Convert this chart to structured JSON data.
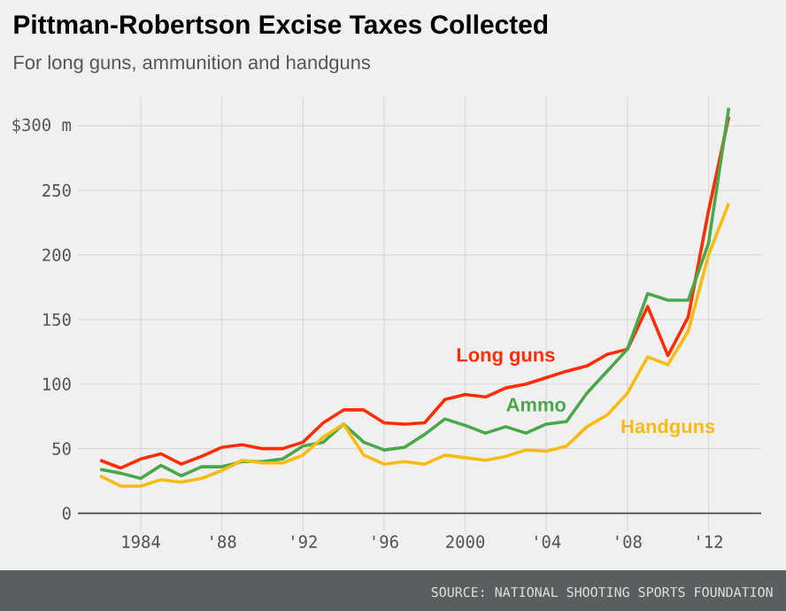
{
  "chart_data": {
    "type": "line",
    "title": "Pittman-Robertson Excise Taxes Collected",
    "subtitle": "For long guns, ammunition and handguns",
    "annotations": [
      "SOURCE: NATIONAL SHOOTING SPORTS FOUNDATION"
    ],
    "x": [
      1982,
      1983,
      1984,
      1985,
      1986,
      1987,
      1988,
      1989,
      1990,
      1991,
      1992,
      1993,
      1994,
      1995,
      1996,
      1997,
      1998,
      1999,
      2000,
      2001,
      2002,
      2003,
      2004,
      2005,
      2006,
      2007,
      2008,
      2009,
      2010,
      2011,
      2012,
      2013
    ],
    "series": [
      {
        "name": "Long guns",
        "color": "#ff2d00",
        "values": [
          41,
          35,
          42,
          46,
          38,
          44,
          51,
          53,
          50,
          50,
          55,
          70,
          80,
          80,
          70,
          69,
          70,
          88,
          92,
          90,
          97,
          100,
          105,
          110,
          114,
          123,
          127,
          160,
          122,
          152,
          234,
          307
        ]
      },
      {
        "name": "Ammo",
        "color": "#4aa84a",
        "values": [
          34,
          31,
          27,
          37,
          29,
          36,
          36,
          40,
          40,
          42,
          52,
          55,
          69,
          55,
          49,
          51,
          61,
          73,
          68,
          62,
          67,
          62,
          69,
          71,
          93,
          110,
          127,
          170,
          165,
          165,
          209,
          314
        ]
      },
      {
        "name": "Handguns",
        "color": "#f8bc10",
        "values": [
          29,
          21,
          21,
          26,
          24,
          27,
          33,
          41,
          39,
          39,
          45,
          59,
          69,
          45,
          38,
          40,
          38,
          45,
          43,
          41,
          44,
          49,
          48,
          52,
          67,
          76,
          93,
          121,
          115,
          141,
          200,
          240
        ]
      }
    ],
    "xlim": [
      1980.9,
      2014.6
    ],
    "ylim": [
      -14,
      322
    ],
    "xticks": [
      1984,
      {
        "value": 1988,
        "label": "'88"
      },
      {
        "value": 1992,
        "label": "'92"
      },
      {
        "value": 1996,
        "label": "'96"
      },
      2000,
      {
        "value": 2004,
        "label": "'04"
      },
      {
        "value": 2008,
        "label": "'08"
      },
      {
        "value": 2012,
        "label": "'12"
      }
    ],
    "yticks": [
      0,
      50,
      100,
      150,
      200,
      250,
      {
        "value": 300,
        "label": "$300 m"
      }
    ],
    "grid": true,
    "marker": "none",
    "line_style": "solid"
  }
}
